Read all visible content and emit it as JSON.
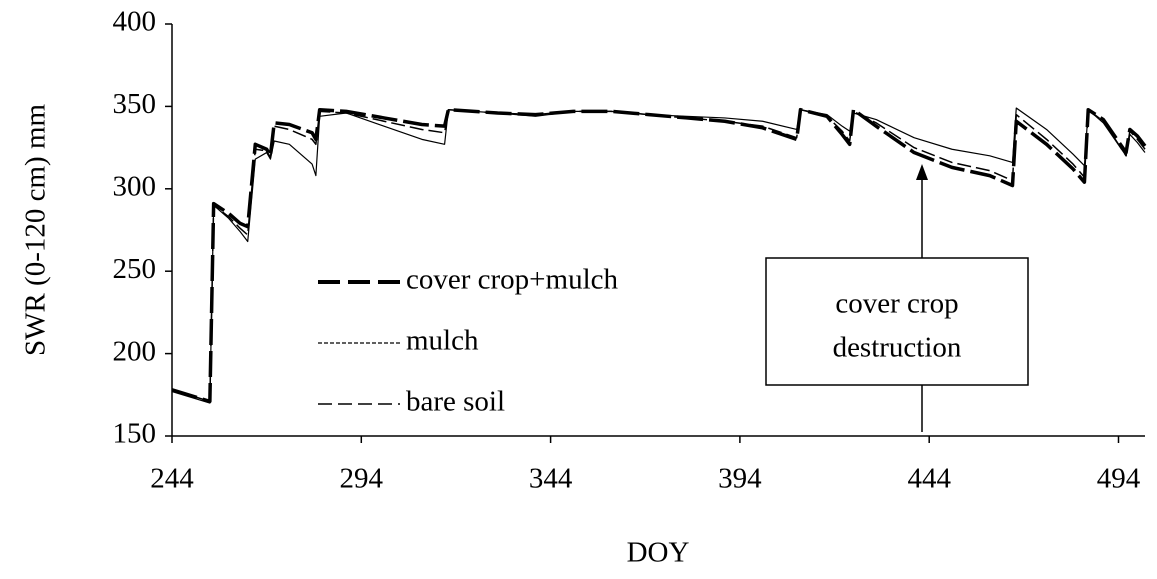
{
  "chart_data": {
    "type": "line",
    "x_label": "DOY",
    "y_label": "SWR (0-120 cm) mm",
    "annotation": [
      "cover crop",
      "destruction"
    ],
    "xlim": [
      244,
      501
    ],
    "xticks": [
      244,
      294,
      344,
      394,
      444,
      494
    ],
    "ylim": [
      150,
      400
    ],
    "yticks": [
      150,
      200,
      250,
      300,
      350,
      400
    ],
    "grid": false,
    "legend": "center-left",
    "x": [
      244,
      254,
      255,
      259,
      262,
      264,
      266,
      269,
      270,
      271,
      275,
      281,
      282,
      283,
      290,
      300,
      310,
      316,
      317,
      330,
      340,
      350,
      360,
      370,
      380,
      390,
      400,
      409,
      410,
      417,
      421,
      423,
      424,
      430,
      440,
      450,
      460,
      466,
      467,
      475,
      482,
      485,
      486,
      490,
      496,
      497,
      499,
      501
    ],
    "series": [
      {
        "name": "cover crop+mulch",
        "color": "#000000",
        "line_style": "thick-dashed",
        "values": [
          178,
          171,
          291,
          285,
          279,
          277,
          327,
          324,
          320,
          340,
          339,
          334,
          330,
          348,
          347,
          343,
          339,
          338,
          348,
          346,
          345,
          347,
          347,
          345,
          343,
          341,
          337,
          330,
          348,
          344,
          333,
          327,
          348,
          338,
          322,
          313,
          308,
          302,
          341,
          327,
          312,
          304,
          348,
          342,
          322,
          336,
          332,
          326
        ]
      },
      {
        "name": "mulch",
        "color": "#000000",
        "line_style": "dotted",
        "values": [
          177,
          170,
          290,
          282,
          274,
          268,
          318,
          322,
          318,
          329,
          327,
          315,
          308,
          344,
          346,
          338,
          330,
          327,
          348,
          346,
          344,
          347,
          347,
          345,
          344,
          343,
          341,
          336,
          348,
          345,
          338,
          335,
          346,
          342,
          331,
          324,
          320,
          316,
          349,
          336,
          321,
          314,
          348,
          340,
          320,
          333,
          328,
          322
        ]
      },
      {
        "name": "bare soil",
        "color": "#000000",
        "line_style": "dashed",
        "values": [
          178,
          171,
          290,
          283,
          276,
          272,
          324,
          323,
          319,
          338,
          336,
          330,
          327,
          347,
          346,
          341,
          336,
          334,
          348,
          346,
          345,
          347,
          347,
          345,
          343,
          341,
          338,
          331,
          348,
          344,
          335,
          329,
          347,
          340,
          325,
          316,
          311,
          305,
          345,
          330,
          315,
          307,
          348,
          341,
          320,
          335,
          330,
          324
        ]
      }
    ]
  }
}
